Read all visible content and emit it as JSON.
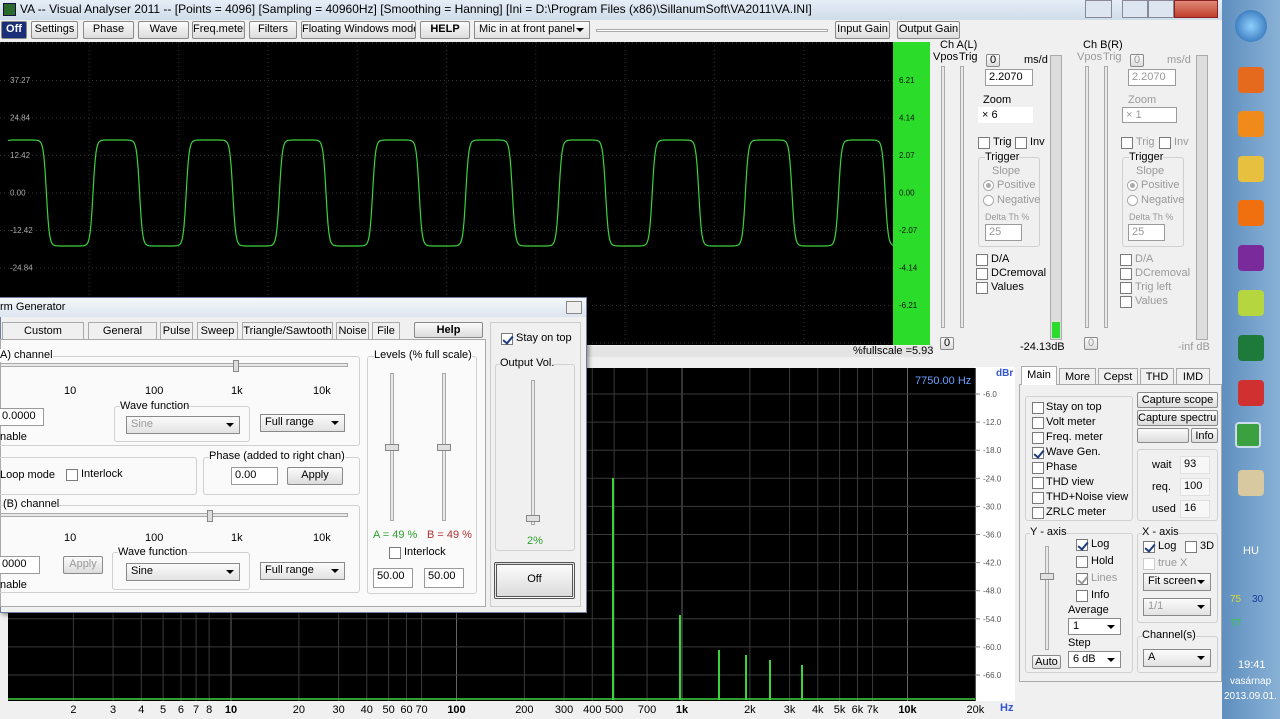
{
  "window": {
    "title": "VA -- Visual Analyser 2011 --  [Points = 4096]  [Sampling = 40960Hz]  [Smoothing = Hanning]  [Ini = D:\\Program Files (x86)\\SillanumSoft\\VA2011\\VA.INI]"
  },
  "toolbar": {
    "buttons": [
      "Off",
      "Settings",
      "Phase",
      "Wave",
      "Freq.meter",
      "Filters",
      "Floating Windows mode",
      "HELP"
    ],
    "input_select": "Mic in at front panel",
    "gain_buttons": [
      "Input Gain",
      "Output Gain"
    ]
  },
  "scope": {
    "left_labels": [
      "37.27",
      "24.84",
      "12.42",
      "0.00",
      "-12.42",
      "-24.84"
    ],
    "right_labels": [
      "6.21",
      "4.14",
      "2.07",
      "0.00",
      "-2.07",
      "-4.14",
      "-6.21"
    ],
    "fullscale": "%fullscale =5.93"
  },
  "channel_a": {
    "title": "Ch A(L)",
    "vpos": "Vpos",
    "trig_label": "Trig",
    "zero_button": "0",
    "ms_unit": "ms/d",
    "ms_value": "2.2070",
    "zoom": "Zoom",
    "zoom_value": "× 6",
    "trig": "Trig",
    "inv": "Inv",
    "trigger": "Trigger",
    "slope": "Slope",
    "positive": "Positive",
    "negative": "Negative",
    "delta": "Delta Th %",
    "delta_value": "25",
    "da": "D/A",
    "dcremoval": "DCremoval",
    "values": "Values",
    "bottom_zero": "0",
    "level": "-24.13dB"
  },
  "channel_b": {
    "title": "Ch B(R)",
    "vpos": "Vpos",
    "trig_label": "Trig",
    "zero_button": "0",
    "ms_unit": "ms/d",
    "ms_value": "2.2070",
    "zoom": "Zoom",
    "zoom_value": "× 1",
    "trig": "Trig",
    "inv": "Inv",
    "trigger": "Trigger",
    "slope": "Slope",
    "positive": "Positive",
    "negative": "Negative",
    "delta": "Delta Th %",
    "delta_value": "25",
    "da": "D/A",
    "dcremoval": "DCremoval",
    "trig_left": "Trig left",
    "values": "Values",
    "bottom_zero": "0",
    "level": "-inf dB"
  },
  "spectrum": {
    "unit": "dBr",
    "marker": "7750.00 Hz",
    "y_labels": [
      "-6.0",
      "-12.0",
      "-18.0",
      "-24.0",
      "-30.0",
      "-36.0",
      "-42.0",
      "-48.0",
      "-54.0",
      "-60.0",
      "-66.0"
    ],
    "x_labels": [
      "2",
      "3",
      "4",
      "5",
      "6",
      "7",
      "8",
      "10",
      "20",
      "30",
      "40",
      "50",
      "60",
      "70",
      "100",
      "200",
      "300",
      "400",
      "500",
      "700",
      "1k",
      "2k",
      "3k",
      "4k",
      "5k",
      "6k",
      "7k",
      "10k",
      "20k"
    ],
    "x_unit": "Hz"
  },
  "generator": {
    "title": "rm Generator",
    "tabs": [
      "Custom Function",
      "General setup",
      "Pulse",
      "Sweep",
      "Triangle/Sawtooth",
      "Noise",
      "File"
    ],
    "help": "Help",
    "a_channel": "A) channel",
    "scale": [
      "10",
      "100",
      "1k",
      "10k"
    ],
    "a_freq": "0.0000",
    "a_enable": "nable",
    "a_wave_label": "Wave function",
    "a_wave": "Sine",
    "a_range": "Full range",
    "loop_mode": "Loop mode",
    "interlock": "Interlock",
    "phase_label": "Phase (added to right chan)",
    "phase_value": "0.00",
    "phase_apply": "Apply",
    "b_channel": "(B) channel",
    "b_freq": "0000",
    "b_apply": "Apply",
    "b_enable": "nable",
    "b_wave_label": "Wave function",
    "b_wave": "Sine",
    "b_range": "Full range",
    "levels": "Levels (% full scale)",
    "level_a": "A = 49 %",
    "level_b": "B = 49 %",
    "levels_interlock": "Interlock",
    "level_a_value": "50.00",
    "level_b_value": "50.00",
    "stay_on_top": "Stay on top",
    "output_vol": "Output Vol.",
    "output_vol_value": "2%",
    "off": "Off"
  },
  "main_panel": {
    "tabs": [
      "Main",
      "More",
      "Cepst",
      "THD",
      "IMD"
    ],
    "checks": [
      "Stay on top",
      "Volt meter",
      "Freq. meter",
      "Wave Gen.",
      "Phase",
      "THD view",
      "THD+Noise view",
      "ZRLC meter"
    ],
    "capture_scope": "Capture scope",
    "capture_spectrum": "Capture spectrum",
    "info_button": "Info",
    "wait": "wait",
    "wait_value": "93",
    "req": "req.",
    "req_value": "100",
    "used": "used",
    "used_value": "16",
    "y_axis": "Y - axis",
    "log": "Log",
    "hold": "Hold",
    "lines": "Lines",
    "info": "Info",
    "average": "Average",
    "average_value": "1",
    "step": "Step",
    "step_value": "6 dB",
    "auto": "Auto",
    "x_axis": "X - axis",
    "x_log": "Log",
    "three_d": "3D",
    "true_x": "true X",
    "fit": "Fit screen",
    "ratio": "1/1",
    "channels": "Channel(s)",
    "channel_value": "A"
  },
  "taskbar": {
    "language": "HU",
    "tray_a": "75",
    "tray_b": "30",
    "tray_c": "77",
    "time": "19:41",
    "day": "vasárnap",
    "date": "2013.09.01."
  }
}
